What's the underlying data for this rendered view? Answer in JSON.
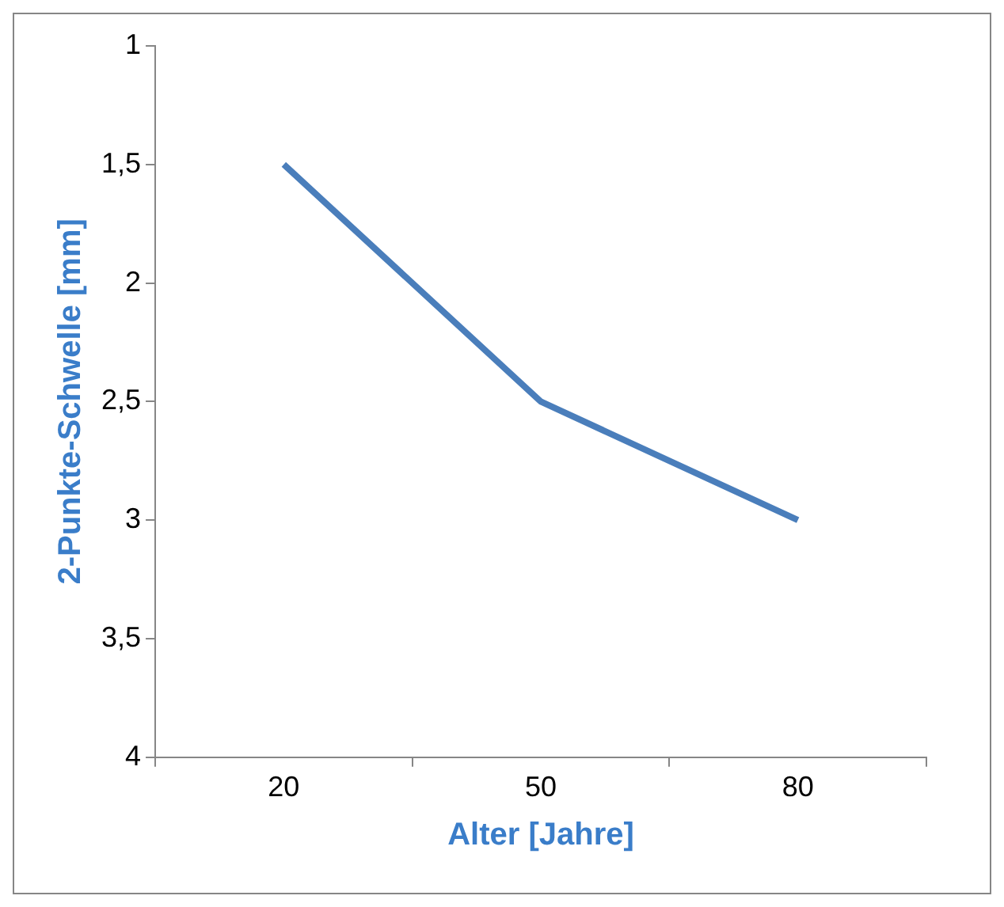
{
  "chart_data": {
    "type": "line",
    "xlabel": "Alter [Jahre]",
    "ylabel": "2-Punkte-Schwelle [mm]",
    "categories": [
      "20",
      "50",
      "80"
    ],
    "series": [
      {
        "color": "#4a7ebb",
        "values": [
          1.5,
          2.5,
          3
        ]
      }
    ],
    "ylim": [
      4,
      1
    ],
    "yticks": [
      1,
      {
        "value": 1.5,
        "label": "1,5"
      },
      2,
      {
        "value": 2.5,
        "label": "2,5"
      },
      3,
      {
        "value": 3.5,
        "label": "3,5"
      },
      4
    ],
    "grid": false,
    "legend": false,
    "marker": "none",
    "line_style": "solid"
  }
}
